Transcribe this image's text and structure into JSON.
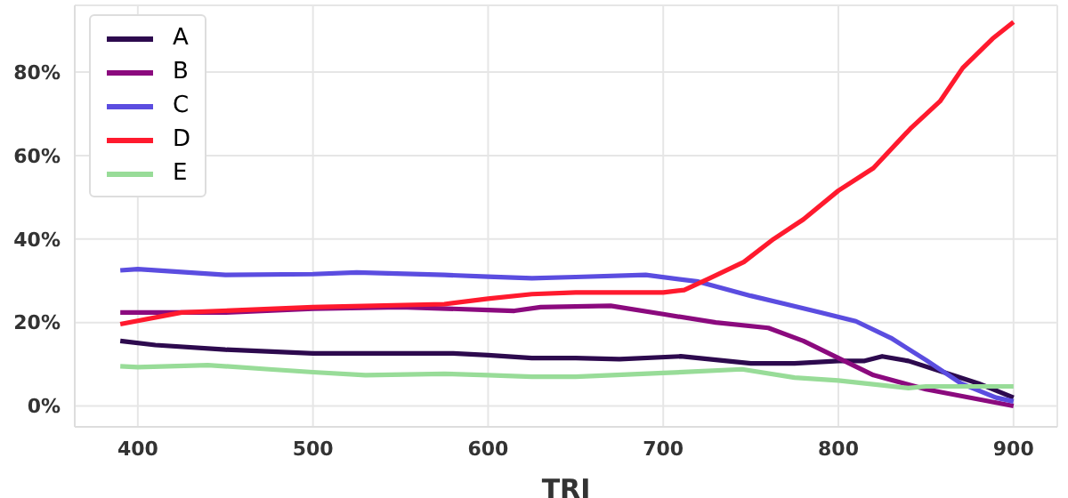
{
  "chart_data": {
    "type": "line",
    "xlabel": "TRI",
    "xlim": [
      364,
      925
    ],
    "ylim": [
      -5,
      96
    ],
    "xticks": [
      400,
      500,
      600,
      700,
      800,
      900
    ],
    "yticks": [
      {
        "value": 0,
        "label": "0%"
      },
      {
        "value": 20,
        "label": "20%"
      },
      {
        "value": 40,
        "label": "40%"
      },
      {
        "value": 60,
        "label": "60%"
      },
      {
        "value": 80,
        "label": "80%"
      }
    ],
    "grid": true,
    "legend": "top left",
    "marker": "none",
    "line_style": "solid",
    "series": [
      {
        "name": "A",
        "color": "#2d0a4e",
        "x": [
          390,
          410,
          450,
          500,
          550,
          580,
          600,
          625,
          650,
          675,
          710,
          750,
          775,
          800,
          815,
          825,
          840,
          860,
          880,
          900
        ],
        "values": [
          15.6,
          14.6,
          13.5,
          12.6,
          12.6,
          12.6,
          12.2,
          11.5,
          11.5,
          11.2,
          11.9,
          10.2,
          10.2,
          10.8,
          10.8,
          11.9,
          10.8,
          8.1,
          5.4,
          2
        ]
      },
      {
        "name": "B",
        "color": "#8b0a7e",
        "x": [
          390,
          450,
          500,
          550,
          600,
          615,
          630,
          670,
          700,
          730,
          760,
          780,
          800,
          820,
          850,
          880,
          900
        ],
        "values": [
          22.4,
          22.4,
          23.3,
          23.7,
          23,
          22.8,
          23.7,
          24,
          22,
          20,
          18.7,
          15.6,
          11.5,
          7.4,
          4,
          1.6,
          0
        ]
      },
      {
        "name": "C",
        "color": "#5b4de0",
        "x": [
          390,
          400,
          450,
          500,
          525,
          575,
          600,
          625,
          650,
          690,
          720,
          750,
          770,
          790,
          810,
          830,
          850,
          870,
          890,
          900
        ],
        "values": [
          32.5,
          32.8,
          31.4,
          31.6,
          32,
          31.4,
          31,
          30.6,
          30.9,
          31.4,
          29.8,
          26.4,
          24.4,
          22.4,
          20.3,
          16.3,
          11,
          5.4,
          2,
          1.1
        ]
      },
      {
        "name": "D",
        "color": "#ff1a2e",
        "x": [
          390,
          425,
          500,
          575,
          600,
          625,
          650,
          700,
          712,
          726,
          746,
          763,
          780,
          800,
          820,
          841,
          858,
          871,
          888,
          900
        ],
        "values": [
          19.6,
          22.4,
          23.7,
          24.4,
          25.7,
          26.8,
          27.2,
          27.2,
          27.8,
          30.5,
          34.5,
          40,
          44.7,
          51.6,
          57,
          66.4,
          73,
          81,
          88,
          92
        ]
      },
      {
        "name": "E",
        "color": "#98dc98",
        "x": [
          390,
          400,
          440,
          475,
          500,
          530,
          575,
          600,
          625,
          650,
          700,
          745,
          775,
          800,
          840,
          850,
          900
        ],
        "values": [
          9.5,
          9.3,
          9.8,
          8.8,
          8.1,
          7.4,
          7.7,
          7.4,
          7,
          7,
          7.9,
          8.8,
          6.8,
          6.1,
          4.3,
          4.7,
          4.7
        ]
      }
    ]
  }
}
